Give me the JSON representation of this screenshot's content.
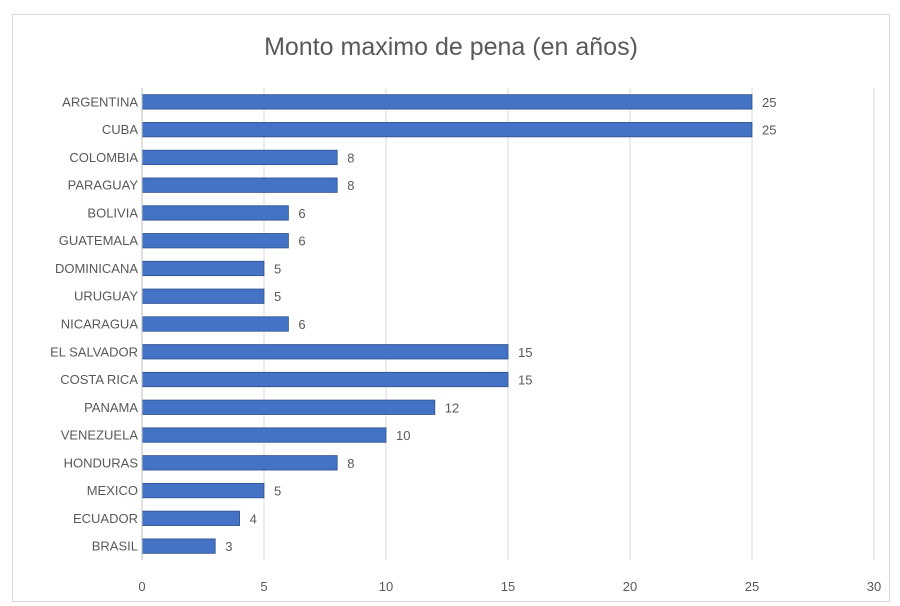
{
  "chart_data": {
    "type": "bar",
    "orientation": "horizontal",
    "title": "Monto maximo de pena (en años)",
    "categories": [
      "ARGENTINA",
      "CUBA",
      "COLOMBIA",
      "PARAGUAY",
      "BOLIVIA",
      "GUATEMALA",
      "DOMINICANA",
      "URUGUAY",
      "NICARAGUA",
      "EL SALVADOR",
      "COSTA RICA",
      "PANAMA",
      "VENEZUELA",
      "HONDURAS",
      "MEXICO",
      "ECUADOR",
      "BRASIL"
    ],
    "values": [
      25,
      25,
      8,
      8,
      6,
      6,
      5,
      5,
      6,
      15,
      15,
      12,
      10,
      8,
      5,
      4,
      3
    ],
    "xlim": [
      0,
      30
    ],
    "xticks": [
      0,
      5,
      10,
      15,
      20,
      25,
      30
    ],
    "grid": true,
    "bar_color": "#4472c4",
    "grid_color": "#d9d9d9"
  }
}
